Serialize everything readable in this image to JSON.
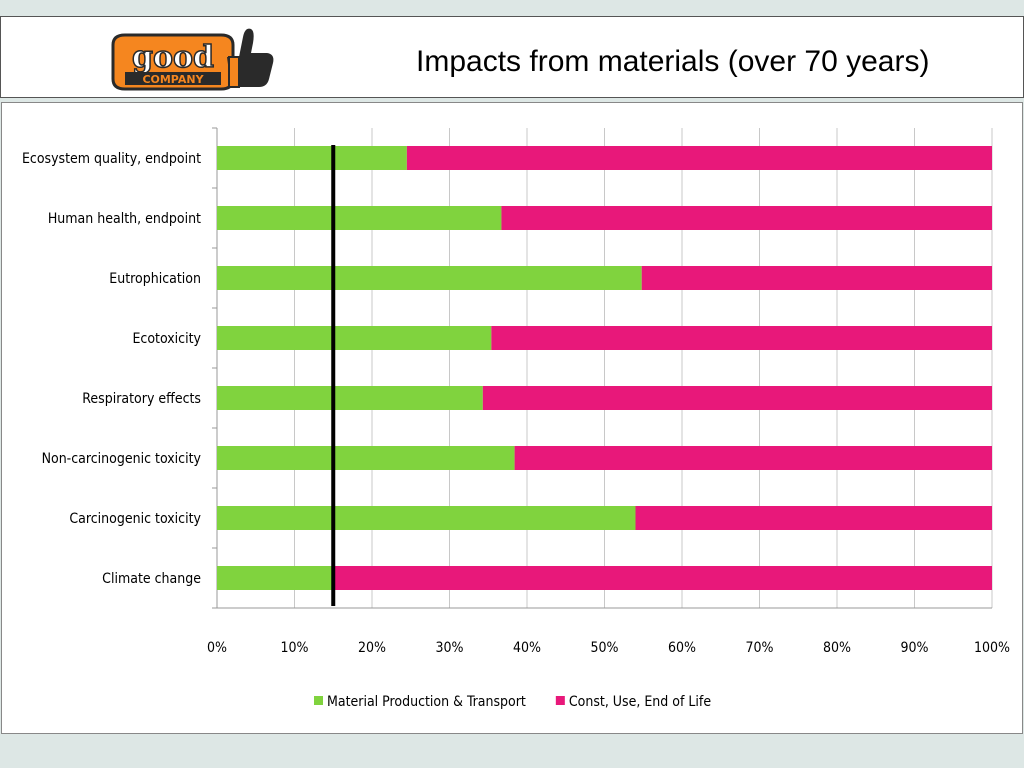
{
  "header": {
    "title": "Impacts from materials (over 70 years)",
    "logo_text_top": "good",
    "logo_text_bottom": "COMPANY"
  },
  "colors": {
    "series_1": "#80d33e",
    "series_2": "#e8187a",
    "reference_line": "#000000",
    "gridline": "#c8c8c8",
    "logo_orange": "#f5861f",
    "logo_dark": "#2a2a2a"
  },
  "chart_data": {
    "type": "bar",
    "orientation": "horizontal",
    "stacked": "percent",
    "categories": [
      "Ecosystem quality, endpoint",
      "Human health, endpoint",
      "Eutrophication",
      "Ecotoxicity",
      "Respiratory effects",
      "Non-carcinogenic toxicity",
      "Carcinogenic toxicity",
      "Climate change"
    ],
    "series": [
      {
        "name": "Material Production & Transport",
        "values": [
          24.5,
          36.7,
          54.8,
          35.4,
          34.3,
          38.4,
          54.0,
          15.0
        ]
      },
      {
        "name": "Const, Use, End of Life",
        "values": [
          75.5,
          63.3,
          45.2,
          64.6,
          65.7,
          61.6,
          46.0,
          85.0
        ]
      }
    ],
    "x_ticks": [
      "0%",
      "10%",
      "20%",
      "30%",
      "40%",
      "50%",
      "60%",
      "70%",
      "80%",
      "90%",
      "100%"
    ],
    "xlim": [
      0,
      100
    ],
    "reference_line_x": 15,
    "grid": "vertical",
    "legend_position": "bottom"
  }
}
